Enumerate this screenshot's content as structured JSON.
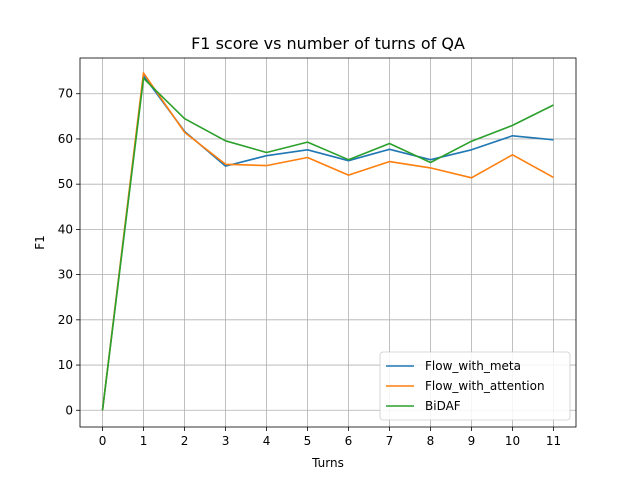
{
  "chart_data": {
    "type": "line",
    "title": "F1 score vs number of turns of QA",
    "xlabel": "Turns",
    "ylabel": "F1",
    "x": [
      0,
      1,
      2,
      3,
      4,
      5,
      6,
      7,
      8,
      9,
      10,
      11
    ],
    "xlim": [
      -0.55,
      11.55
    ],
    "ylim": [
      -3.7,
      77.9
    ],
    "xticks": [
      0,
      1,
      2,
      3,
      4,
      5,
      6,
      7,
      8,
      9,
      10,
      11
    ],
    "yticks": [
      0,
      10,
      20,
      30,
      40,
      50,
      60,
      70
    ],
    "grid": true,
    "legend_position": "bottom-right",
    "series": [
      {
        "name": "Flow_with_meta",
        "color": "#1f77b4",
        "values": [
          0,
          74.0,
          61.7,
          54.0,
          56.3,
          57.6,
          55.2,
          57.7,
          55.4,
          57.6,
          60.7,
          59.8
        ]
      },
      {
        "name": "Flow_with_attention",
        "color": "#ff7f0e",
        "values": [
          0,
          74.6,
          61.5,
          54.4,
          54.1,
          55.9,
          52.0,
          55.0,
          53.6,
          51.4,
          56.5,
          51.5
        ]
      },
      {
        "name": "BiDAF",
        "color": "#2ca02c",
        "values": [
          0,
          73.4,
          64.5,
          59.6,
          57.0,
          59.3,
          55.4,
          59.0,
          54.8,
          59.5,
          63.0,
          67.5
        ]
      }
    ]
  }
}
